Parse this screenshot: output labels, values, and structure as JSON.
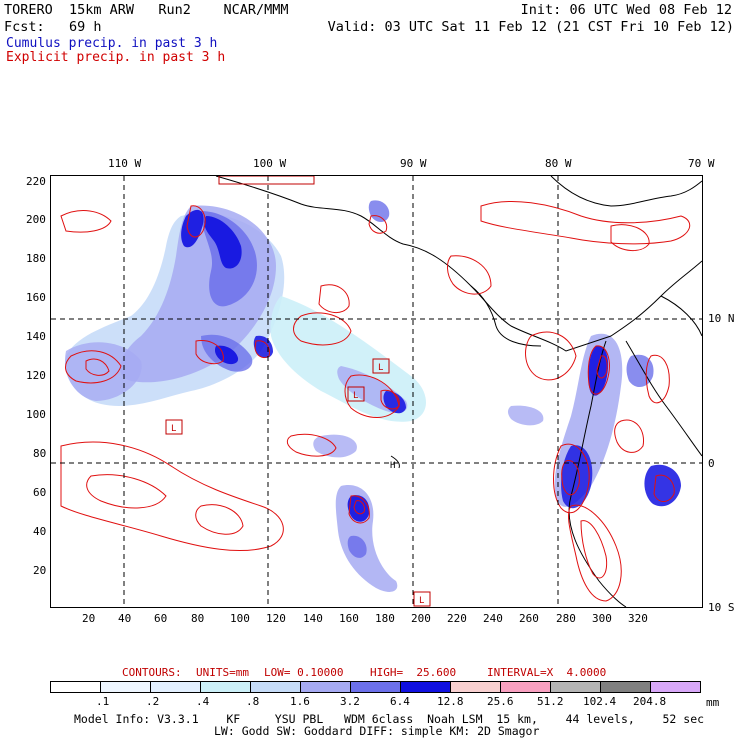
{
  "header": {
    "line1_left": "TORERO  15km ARW   Run2    NCAR/MMM",
    "line1_right": "Init: 06 UTC Wed 08 Feb 12",
    "line2_left": "Fcst:   69 h",
    "line2_right": "Valid: 03 UTC Sat 11 Feb 12 (21 CST Fri 10 Feb 12)",
    "legend_blue": "Cumulus precip. in past 3 h",
    "legend_red": "Explicit precip. in past 3 h"
  },
  "map": {
    "top_lon_labels": [
      "110 W",
      "100 W",
      "90 W",
      "80 W",
      "70 W"
    ],
    "right_lat_labels": [
      "10 N",
      "0",
      "10 S"
    ],
    "left_y_ticks": [
      "220",
      "200",
      "180",
      "160",
      "140",
      "120",
      "100",
      "80",
      "60",
      "40",
      "20"
    ],
    "bottom_x_ticks": [
      "20",
      "40",
      "60",
      "80",
      "100",
      "120",
      "140",
      "160",
      "180",
      "200",
      "220",
      "240",
      "260",
      "280",
      "300",
      "320"
    ],
    "low_markers": [
      "L",
      "L",
      "L",
      "L",
      "L"
    ],
    "high_marker": "H",
    "colors": {
      "contour_red": "#e01010",
      "coast_black": "#000000",
      "grid_dash": "#000000"
    }
  },
  "contours_line": {
    "label": "CONTOURS:",
    "units": "UNITS=mm",
    "low": "LOW= 0.10000",
    "high": "HIGH=  25.600",
    "interval": "INTERVAL=X  4.0000"
  },
  "colorbar": {
    "unit": "mm",
    "boxes": [
      {
        "color": "#ffffff"
      },
      {
        "color": "#eef6ff"
      },
      {
        "color": "#e3f0ff"
      },
      {
        "color": "#ccf0f8"
      },
      {
        "color": "#c6dcf8"
      },
      {
        "color": "#a6aaf2"
      },
      {
        "color": "#6c70ea"
      },
      {
        "color": "#1010e0"
      },
      {
        "color": "#f8d0d0"
      },
      {
        "color": "#f8a0c0"
      },
      {
        "color": "#b4b4b4"
      },
      {
        "color": "#808080"
      },
      {
        "color": "#d8a8f8"
      }
    ],
    "labels": [
      ".1",
      ".2",
      ".4",
      ".8",
      "1.6",
      "3.2",
      "6.4",
      "12.8",
      "25.6",
      "51.2",
      "102.4",
      "204.8"
    ]
  },
  "model_info": {
    "line1": "Model Info: V3.3.1    KF     YSU PBL   WDM 6class  Noah LSM  15 km,    44 levels,    52 sec",
    "line2": "LW: Godd SW: Goddard DIFF: simple KM: 2D Smagor"
  }
}
